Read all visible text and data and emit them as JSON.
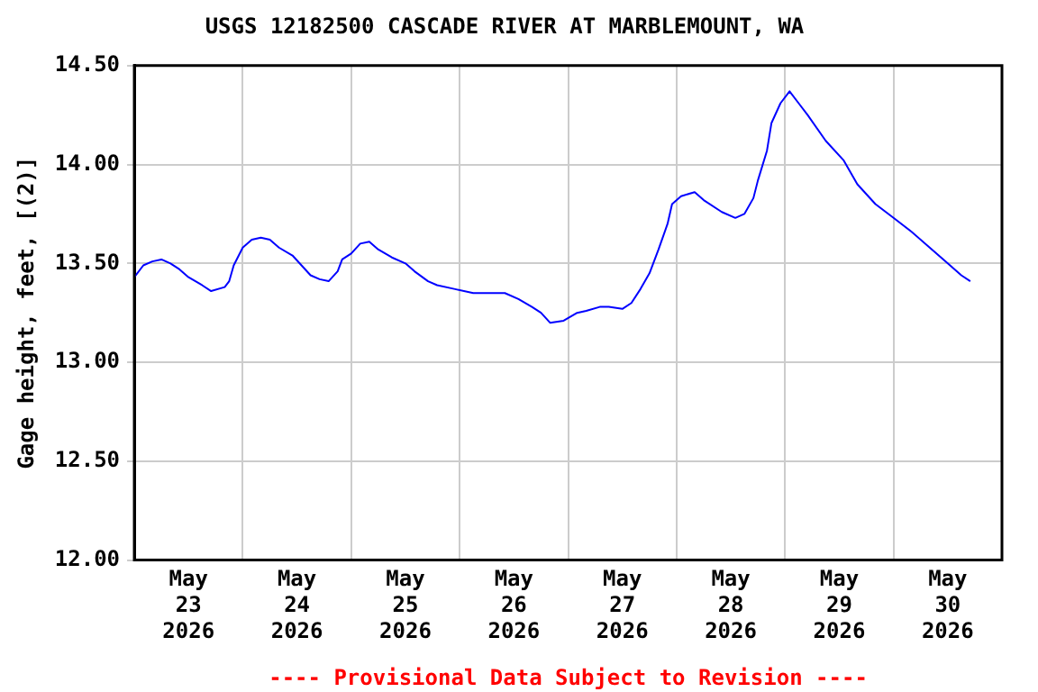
{
  "chart_data": {
    "type": "line",
    "title": "USGS 12182500 CASCADE RIVER AT MARBLEMOUNT, WA",
    "ylabel": "Gage height, feet, [(2)]",
    "annotations": [
      "---- Provisional Data Subject to Revision ----"
    ],
    "x": [
      "2026-05-23T00:00",
      "2026-05-23T02:00",
      "2026-05-23T04:00",
      "2026-05-23T06:00",
      "2026-05-23T08:00",
      "2026-05-23T10:00",
      "2026-05-23T12:00",
      "2026-05-23T15:00",
      "2026-05-23T17:00",
      "2026-05-23T20:00",
      "2026-05-23T21:00",
      "2026-05-23T22:00",
      "2026-05-24T00:00",
      "2026-05-24T02:00",
      "2026-05-24T04:00",
      "2026-05-24T06:00",
      "2026-05-24T08:00",
      "2026-05-24T11:00",
      "2026-05-24T13:00",
      "2026-05-24T15:00",
      "2026-05-24T17:00",
      "2026-05-24T19:00",
      "2026-05-24T21:00",
      "2026-05-24T22:00",
      "2026-05-25T00:00",
      "2026-05-25T02:00",
      "2026-05-25T04:00",
      "2026-05-25T06:00",
      "2026-05-25T09:00",
      "2026-05-25T12:00",
      "2026-05-25T14:00",
      "2026-05-25T17:00",
      "2026-05-25T19:00",
      "2026-05-25T23:00",
      "2026-05-26T03:00",
      "2026-05-26T07:00",
      "2026-05-26T10:00",
      "2026-05-26T13:00",
      "2026-05-26T16:00",
      "2026-05-26T18:00",
      "2026-05-26T20:00",
      "2026-05-26T23:00",
      "2026-05-27T02:00",
      "2026-05-27T04:00",
      "2026-05-27T07:00",
      "2026-05-27T09:00",
      "2026-05-27T12:00",
      "2026-05-27T14:00",
      "2026-05-27T16:00",
      "2026-05-27T18:00",
      "2026-05-27T20:00",
      "2026-05-27T22:00",
      "2026-05-27T23:00",
      "2026-05-28T01:00",
      "2026-05-28T04:00",
      "2026-05-28T06:00",
      "2026-05-28T10:00",
      "2026-05-28T13:00",
      "2026-05-28T15:00",
      "2026-05-28T17:00",
      "2026-05-28T18:00",
      "2026-05-28T20:00",
      "2026-05-28T21:00",
      "2026-05-28T23:00",
      "2026-05-29T01:00",
      "2026-05-29T03:00",
      "2026-05-29T05:00",
      "2026-05-29T09:00",
      "2026-05-29T13:00",
      "2026-05-29T16:00",
      "2026-05-29T20:00",
      "2026-05-30T00:00",
      "2026-05-30T04:00",
      "2026-05-30T08:00",
      "2026-05-30T12:00",
      "2026-05-30T15:00",
      "2026-05-30T17:00"
    ],
    "series": [
      {
        "color": "#0000ff",
        "values": [
          13.43,
          13.49,
          13.51,
          13.52,
          13.5,
          13.47,
          13.43,
          13.39,
          13.36,
          13.38,
          13.41,
          13.49,
          13.58,
          13.62,
          13.63,
          13.62,
          13.58,
          13.54,
          13.49,
          13.44,
          13.42,
          13.41,
          13.46,
          13.52,
          13.55,
          13.6,
          13.61,
          13.57,
          13.53,
          13.5,
          13.46,
          13.41,
          13.39,
          13.37,
          13.35,
          13.35,
          13.35,
          13.32,
          13.28,
          13.25,
          13.2,
          13.21,
          13.25,
          13.26,
          13.28,
          13.28,
          13.27,
          13.3,
          13.37,
          13.45,
          13.57,
          13.7,
          13.8,
          13.84,
          13.86,
          13.82,
          13.76,
          13.73,
          13.75,
          13.83,
          13.92,
          14.07,
          14.21,
          14.31,
          14.37,
          14.31,
          14.25,
          14.12,
          14.02,
          13.9,
          13.8,
          13.73,
          13.66,
          13.58,
          13.5,
          13.44,
          13.41
        ]
      }
    ],
    "xlim": [
      "2026-05-23T00:00",
      "2026-05-31T00:00"
    ],
    "xticks": [
      {
        "value": "2026-05-24T00:00",
        "label": null
      },
      {
        "value": "2026-05-25T00:00",
        "label": null
      },
      {
        "value": "2026-05-26T00:00",
        "label": null
      },
      {
        "value": "2026-05-27T00:00",
        "label": null
      },
      {
        "value": "2026-05-28T00:00",
        "label": null
      },
      {
        "value": "2026-05-29T00:00",
        "label": null
      },
      {
        "value": "2026-05-30T00:00",
        "label": null
      },
      {
        "value": "2026-05-23T12:00",
        "label": "May 23 2026"
      },
      {
        "value": "2026-05-24T12:00",
        "label": "May 24 2026"
      },
      {
        "value": "2026-05-25T12:00",
        "label": "May 25 2026"
      },
      {
        "value": "2026-05-26T12:00",
        "label": "May 26 2026"
      },
      {
        "value": "2026-05-27T12:00",
        "label": "May 27 2026"
      },
      {
        "value": "2026-05-28T12:00",
        "label": "May 28 2026"
      },
      {
        "value": "2026-05-29T12:00",
        "label": "May 29 2026"
      },
      {
        "value": "2026-05-30T12:00",
        "label": "May 30 2026"
      }
    ],
    "ylim": [
      12,
      14.5
    ],
    "yticks": [
      {
        "value": 12,
        "label": "12.00"
      },
      {
        "value": 12.5,
        "label": "12.50"
      },
      {
        "value": 13,
        "label": "13.00"
      },
      {
        "value": 13.5,
        "label": "13.50"
      },
      {
        "value": 14,
        "label": "14.00"
      },
      {
        "value": 14.5,
        "label": "14.50"
      }
    ],
    "grid": true,
    "legend": false,
    "marker": "none",
    "line_style": "solid"
  }
}
